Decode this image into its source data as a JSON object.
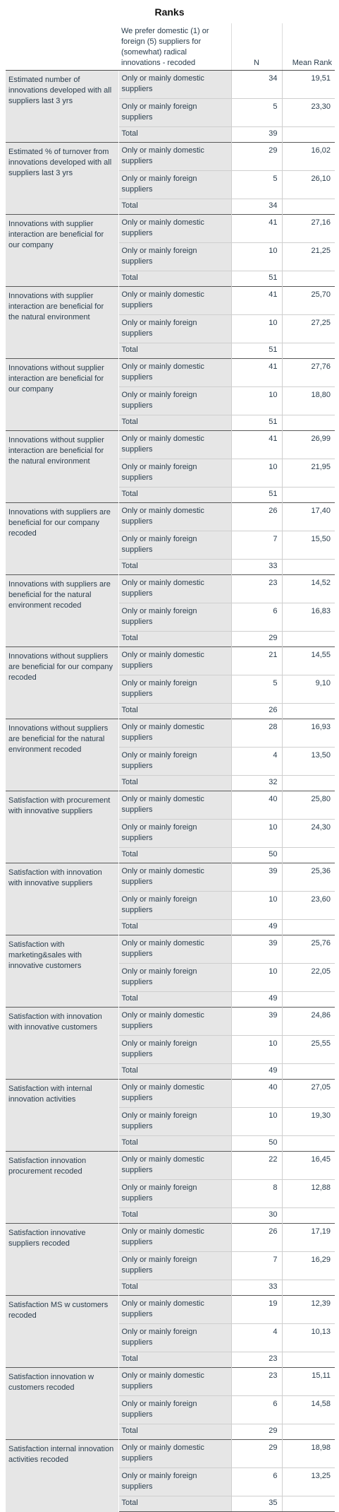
{
  "title": "Ranks",
  "headers": {
    "group": "We prefer domestic (1) or foreign (5) suppliers for (somewhat) radical innovations - recoded",
    "n": "N",
    "mean_rank": "Mean Rank"
  },
  "labels": {
    "domestic": "Only or mainly domestic suppliers",
    "foreign": "Only or mainly foreign suppliers",
    "total": "Total"
  },
  "rows": [
    {
      "label": "Estimated number of innovations developed with all suppliers last 3 yrs",
      "domestic_n": "34",
      "domestic_rank": "19,51",
      "foreign_n": "5",
      "foreign_rank": "23,30",
      "total_n": "39"
    },
    {
      "label": "Estimated % of turnover from innovations developed with all suppliers last 3 yrs",
      "domestic_n": "29",
      "domestic_rank": "16,02",
      "foreign_n": "5",
      "foreign_rank": "26,10",
      "total_n": "34"
    },
    {
      "label": "Innovations with supplier interaction are beneficial for our company",
      "domestic_n": "41",
      "domestic_rank": "27,16",
      "foreign_n": "10",
      "foreign_rank": "21,25",
      "total_n": "51"
    },
    {
      "label": "Innovations with supplier interaction are beneficial for the natural environment",
      "domestic_n": "41",
      "domestic_rank": "25,70",
      "foreign_n": "10",
      "foreign_rank": "27,25",
      "total_n": "51"
    },
    {
      "label": "Innovations without supplier interaction are beneficial for our company",
      "domestic_n": "41",
      "domestic_rank": "27,76",
      "foreign_n": "10",
      "foreign_rank": "18,80",
      "total_n": "51"
    },
    {
      "label": "Innovations without supplier interaction are beneficial for the natural environment",
      "domestic_n": "41",
      "domestic_rank": "26,99",
      "foreign_n": "10",
      "foreign_rank": "21,95",
      "total_n": "51"
    },
    {
      "label": "Innovations with suppliers are beneficial for our company recoded",
      "domestic_n": "26",
      "domestic_rank": "17,40",
      "foreign_n": "7",
      "foreign_rank": "15,50",
      "total_n": "33"
    },
    {
      "label": "Innovations with suppliers are beneficial for the natural environment recoded",
      "domestic_n": "23",
      "domestic_rank": "14,52",
      "foreign_n": "6",
      "foreign_rank": "16,83",
      "total_n": "29"
    },
    {
      "label": "Innovations without suppliers are beneficial for our company recoded",
      "domestic_n": "21",
      "domestic_rank": "14,55",
      "foreign_n": "5",
      "foreign_rank": "9,10",
      "total_n": "26"
    },
    {
      "label": "Innovations without suppliers are beneficial for the natural environment recoded",
      "domestic_n": "28",
      "domestic_rank": "16,93",
      "foreign_n": "4",
      "foreign_rank": "13,50",
      "total_n": "32"
    },
    {
      "label": "Satisfaction with procurement with innovative suppliers",
      "domestic_n": "40",
      "domestic_rank": "25,80",
      "foreign_n": "10",
      "foreign_rank": "24,30",
      "total_n": "50"
    },
    {
      "label": "Satisfaction with innovation with innovative suppliers",
      "domestic_n": "39",
      "domestic_rank": "25,36",
      "foreign_n": "10",
      "foreign_rank": "23,60",
      "total_n": "49"
    },
    {
      "label": "Satisfaction with marketing&sales with innovative customers",
      "domestic_n": "39",
      "domestic_rank": "25,76",
      "foreign_n": "10",
      "foreign_rank": "22,05",
      "total_n": "49"
    },
    {
      "label": "Satisfaction with innovation with innovative customers",
      "domestic_n": "39",
      "domestic_rank": "24,86",
      "foreign_n": "10",
      "foreign_rank": "25,55",
      "total_n": "49"
    },
    {
      "label": "Satisfaction with internal innovation activities",
      "domestic_n": "40",
      "domestic_rank": "27,05",
      "foreign_n": "10",
      "foreign_rank": "19,30",
      "total_n": "50"
    },
    {
      "label": "Satisfaction innovation procurement recoded",
      "domestic_n": "22",
      "domestic_rank": "16,45",
      "foreign_n": "8",
      "foreign_rank": "12,88",
      "total_n": "30"
    },
    {
      "label": "Satisfaction innovative suppliers recoded",
      "domestic_n": "26",
      "domestic_rank": "17,19",
      "foreign_n": "7",
      "foreign_rank": "16,29",
      "total_n": "33"
    },
    {
      "label": "Satisfaction MS w customers recoded",
      "domestic_n": "19",
      "domestic_rank": "12,39",
      "foreign_n": "4",
      "foreign_rank": "10,13",
      "total_n": "23"
    },
    {
      "label": "Satisfaction innovation w customers recoded",
      "domestic_n": "23",
      "domestic_rank": "15,11",
      "foreign_n": "6",
      "foreign_rank": "14,58",
      "total_n": "29"
    },
    {
      "label": "Satisfaction internal innovation activities recoded",
      "domestic_n": "29",
      "domestic_rank": "18,98",
      "foreign_n": "6",
      "foreign_rank": "13,25",
      "total_n": "35"
    }
  ]
}
